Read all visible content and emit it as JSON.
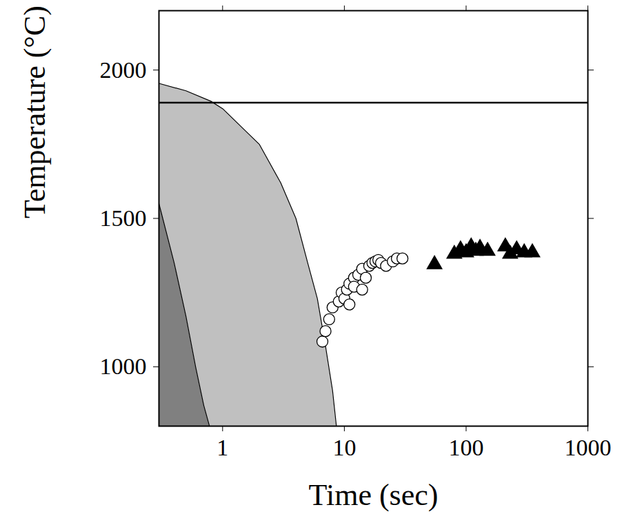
{
  "chart_data": {
    "type": "scatter",
    "xlabel": "Time (sec)",
    "ylabel": "Temperature (°C)",
    "log": "x",
    "xlim": [
      0.3,
      1000
    ],
    "ylim": [
      800,
      2200
    ],
    "xticks": [
      1,
      10,
      100,
      1000
    ],
    "yticks": [
      1000,
      1500,
      2000
    ],
    "hlines": [
      1890
    ],
    "series": [
      {
        "type": "area",
        "color": "#c0c0c0",
        "x": [
          0.3,
          0.5,
          0.8,
          1,
          2,
          3,
          4,
          5,
          6,
          7,
          8,
          8.6
        ],
        "values": [
          1955,
          1930,
          1895,
          1870,
          1750,
          1620,
          1500,
          1350,
          1230,
          1070,
          920,
          800
        ]
      },
      {
        "type": "area",
        "color": "#808080",
        "x": [
          0.3,
          0.4,
          0.5,
          0.6,
          0.7,
          0.78
        ],
        "values": [
          1550,
          1350,
          1170,
          1000,
          870,
          800
        ]
      },
      {
        "type": "scatter",
        "color": "#000000",
        "marker": "open_circle",
        "x": [
          6.6,
          7,
          7.5,
          8,
          9,
          9.5,
          10,
          10.5,
          11,
          11,
          12,
          12,
          13,
          14,
          14,
          15,
          16,
          17,
          18,
          19,
          20,
          22,
          25,
          27,
          30
        ],
        "values": [
          1085,
          1120,
          1160,
          1200,
          1220,
          1250,
          1230,
          1260,
          1280,
          1210,
          1300,
          1270,
          1310,
          1330,
          1260,
          1300,
          1340,
          1350,
          1355,
          1360,
          1350,
          1340,
          1355,
          1365,
          1365
        ]
      },
      {
        "type": "scatter",
        "color": "#000000",
        "marker": "filled_triangle",
        "x": [
          55,
          80,
          90,
          100,
          110,
          120,
          130,
          150,
          210,
          230,
          260,
          300,
          350
        ],
        "values": [
          1345,
          1380,
          1395,
          1385,
          1405,
          1390,
          1400,
          1390,
          1405,
          1380,
          1395,
          1385,
          1385
        ]
      }
    ]
  }
}
